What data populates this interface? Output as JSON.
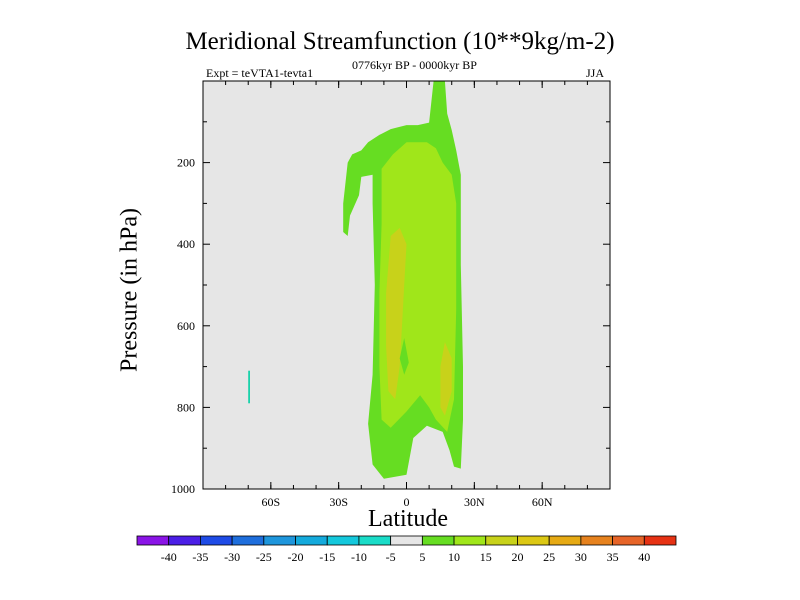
{
  "chart_data": {
    "type": "contour",
    "title": "Meridional Streamfunction (10**9kg/m-2)",
    "subtitle_left": "Expt = teVTA1-tevta1",
    "subtitle_mid": "0776kyr BP - 0000kyr BP",
    "subtitle_right": "JJA",
    "xlabel": "Latitude",
    "ylabel": "Pressure (in hPa)",
    "xlim": [
      -90,
      90
    ],
    "ylim": [
      1000,
      0
    ],
    "x_ticks": [
      {
        "value": -60,
        "label": "60S"
      },
      {
        "value": -30,
        "label": "30S"
      },
      {
        "value": 0,
        "label": "0"
      },
      {
        "value": 30,
        "label": "30N"
      },
      {
        "value": 60,
        "label": "60N"
      }
    ],
    "y_ticks": [
      {
        "value": 200,
        "label": "200"
      },
      {
        "value": 400,
        "label": "400"
      },
      {
        "value": 600,
        "label": "600"
      },
      {
        "value": 800,
        "label": "800"
      },
      {
        "value": 1000,
        "label": "1000"
      }
    ],
    "background_color": "#e6e6e6",
    "contour_regions": [
      {
        "level": "5 to 10",
        "color": "#66dd22",
        "points": [
          [
            -26,
            200
          ],
          [
            -24,
            180
          ],
          [
            -20,
            170
          ],
          [
            -17,
            150
          ],
          [
            -12,
            132
          ],
          [
            -7,
            118
          ],
          [
            0,
            108
          ],
          [
            5,
            108
          ],
          [
            10,
            102
          ],
          [
            12,
            0
          ],
          [
            17,
            0
          ],
          [
            18,
            80
          ],
          [
            20,
            120
          ],
          [
            22,
            170
          ],
          [
            24,
            230
          ],
          [
            24,
            450
          ],
          [
            25,
            700
          ],
          [
            25,
            830
          ],
          [
            24,
            950
          ],
          [
            21,
            945
          ],
          [
            19,
            905
          ],
          [
            16,
            860
          ],
          [
            9,
            845
          ],
          [
            3,
            875
          ],
          [
            0,
            965
          ],
          [
            -10,
            975
          ],
          [
            -15,
            940
          ],
          [
            -17,
            840
          ],
          [
            -15,
            720
          ],
          [
            -14,
            500
          ],
          [
            -15,
            300
          ],
          [
            -15,
            230
          ],
          [
            -20,
            235
          ],
          [
            -21,
            280
          ],
          [
            -25,
            330
          ],
          [
            -26,
            380
          ],
          [
            -28,
            370
          ],
          [
            -28,
            300
          ]
        ]
      },
      {
        "level": "10 to 15",
        "color": "#a0e61a",
        "points": [
          [
            -11,
            215
          ],
          [
            -6,
            180
          ],
          [
            0,
            150
          ],
          [
            5,
            150
          ],
          [
            9,
            150
          ],
          [
            13,
            165
          ],
          [
            16,
            200
          ],
          [
            20,
            230
          ],
          [
            22,
            300
          ],
          [
            22,
            560
          ],
          [
            21,
            780
          ],
          [
            18,
            860
          ],
          [
            13,
            830
          ],
          [
            10,
            800
          ],
          [
            6,
            770
          ],
          [
            0,
            810
          ],
          [
            -7,
            850
          ],
          [
            -11,
            830
          ],
          [
            -12,
            700
          ],
          [
            -12,
            520
          ],
          [
            -11,
            350
          ]
        ]
      },
      {
        "level": "15 to 20",
        "color": "#c8d21a",
        "points": [
          [
            -7,
            380
          ],
          [
            -3,
            360
          ],
          [
            0,
            400
          ],
          [
            -1,
            500
          ],
          [
            -2,
            600
          ],
          [
            -3,
            700
          ],
          [
            -5,
            780
          ],
          [
            -8,
            760
          ],
          [
            -9,
            650
          ],
          [
            -9,
            520
          ]
        ]
      },
      {
        "level": "15 to 20",
        "color": "#c8d21a",
        "points": [
          [
            17,
            640
          ],
          [
            20,
            680
          ],
          [
            20,
            760
          ],
          [
            17,
            820
          ],
          [
            15,
            800
          ],
          [
            15,
            700
          ]
        ]
      },
      {
        "level": "10 to 15",
        "color": "#a0e61a",
        "points": [
          [
            2,
            640
          ],
          [
            4,
            640
          ],
          [
            4,
            700
          ],
          [
            2,
            700
          ]
        ]
      },
      {
        "level": "5 to 10",
        "color": "#66dd22",
        "points": [
          [
            -1,
            630
          ],
          [
            1,
            690
          ],
          [
            -1,
            720
          ],
          [
            -3,
            680
          ]
        ]
      },
      {
        "level": "-10 to -5",
        "color": "#1ad2aa",
        "points": [
          [
            -70,
            710
          ],
          [
            -69.2,
            710
          ],
          [
            -69.2,
            790
          ],
          [
            -70,
            790
          ]
        ]
      }
    ],
    "colorbar": {
      "labels": [
        "-40",
        "-35",
        "-30",
        "-25",
        "-20",
        "-15",
        "-10",
        "-5",
        "5",
        "10",
        "15",
        "20",
        "25",
        "30",
        "35",
        "40"
      ],
      "colors": [
        "#8a14e6",
        "#4b1ee6",
        "#1e4be6",
        "#1e6edc",
        "#1e96dc",
        "#14aadc",
        "#14c8dc",
        "#1adcc8",
        "#e6e6e6",
        "#66dd22",
        "#a0e61a",
        "#c8d21a",
        "#dcc814",
        "#e6aa14",
        "#e6821e",
        "#e66428",
        "#e63214"
      ]
    }
  }
}
